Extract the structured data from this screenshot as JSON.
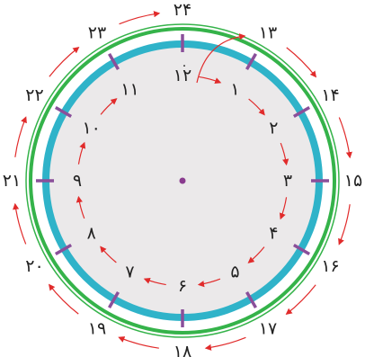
{
  "colors": {
    "face": "#ebe9ea",
    "inner_ring": "#2fb3c9",
    "outer_ring": "#35b34a",
    "tick": "#8a4f9a",
    "arrow": "#e12b2b",
    "center_dot": "#8a3b8f"
  },
  "inner_numbers": [
    "۱۲",
    "۱",
    "۲",
    "۳",
    "۴",
    "۵",
    "۶",
    "۷",
    "۸",
    "۹",
    "۱۰",
    "۱۱"
  ],
  "outer_numbers": [
    "۲۴",
    "۱۳",
    "۱۴",
    "۱۵",
    "۱۶",
    "۱۷",
    "۱۸",
    "۱۹",
    "۲۰",
    "۲۱",
    "۲۲",
    "۲۳"
  ],
  "zero_label": "۰"
}
